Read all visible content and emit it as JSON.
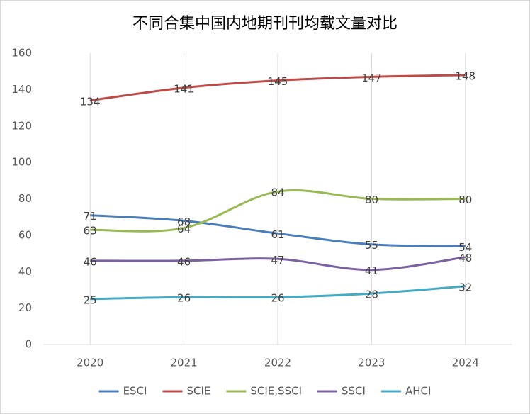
{
  "chart_data": {
    "type": "line",
    "title": "不同合集中国内地期刊刊均载文量对比",
    "categories": [
      "2020",
      "2021",
      "2022",
      "2023",
      "2024"
    ],
    "series": [
      {
        "name": "ESCI",
        "color": "#4a7ebb",
        "values": [
          71,
          68,
          61,
          55,
          54
        ]
      },
      {
        "name": "SCIE",
        "color": "#be4b48",
        "values": [
          134,
          141,
          145,
          147,
          148
        ]
      },
      {
        "name": "SCIE,SSCI",
        "color": "#98b954",
        "values": [
          63,
          64,
          84,
          80,
          80
        ]
      },
      {
        "name": "SSCI",
        "color": "#7d60a0",
        "values": [
          46,
          46,
          47,
          41,
          48
        ]
      },
      {
        "name": "AHCI",
        "color": "#46aac5",
        "values": [
          25,
          26,
          26,
          28,
          32
        ]
      }
    ],
    "ylim": [
      0,
      160
    ],
    "yticks": [
      0,
      20,
      40,
      60,
      80,
      100,
      120,
      140,
      160
    ],
    "smooth": true,
    "legend": "bottom"
  }
}
